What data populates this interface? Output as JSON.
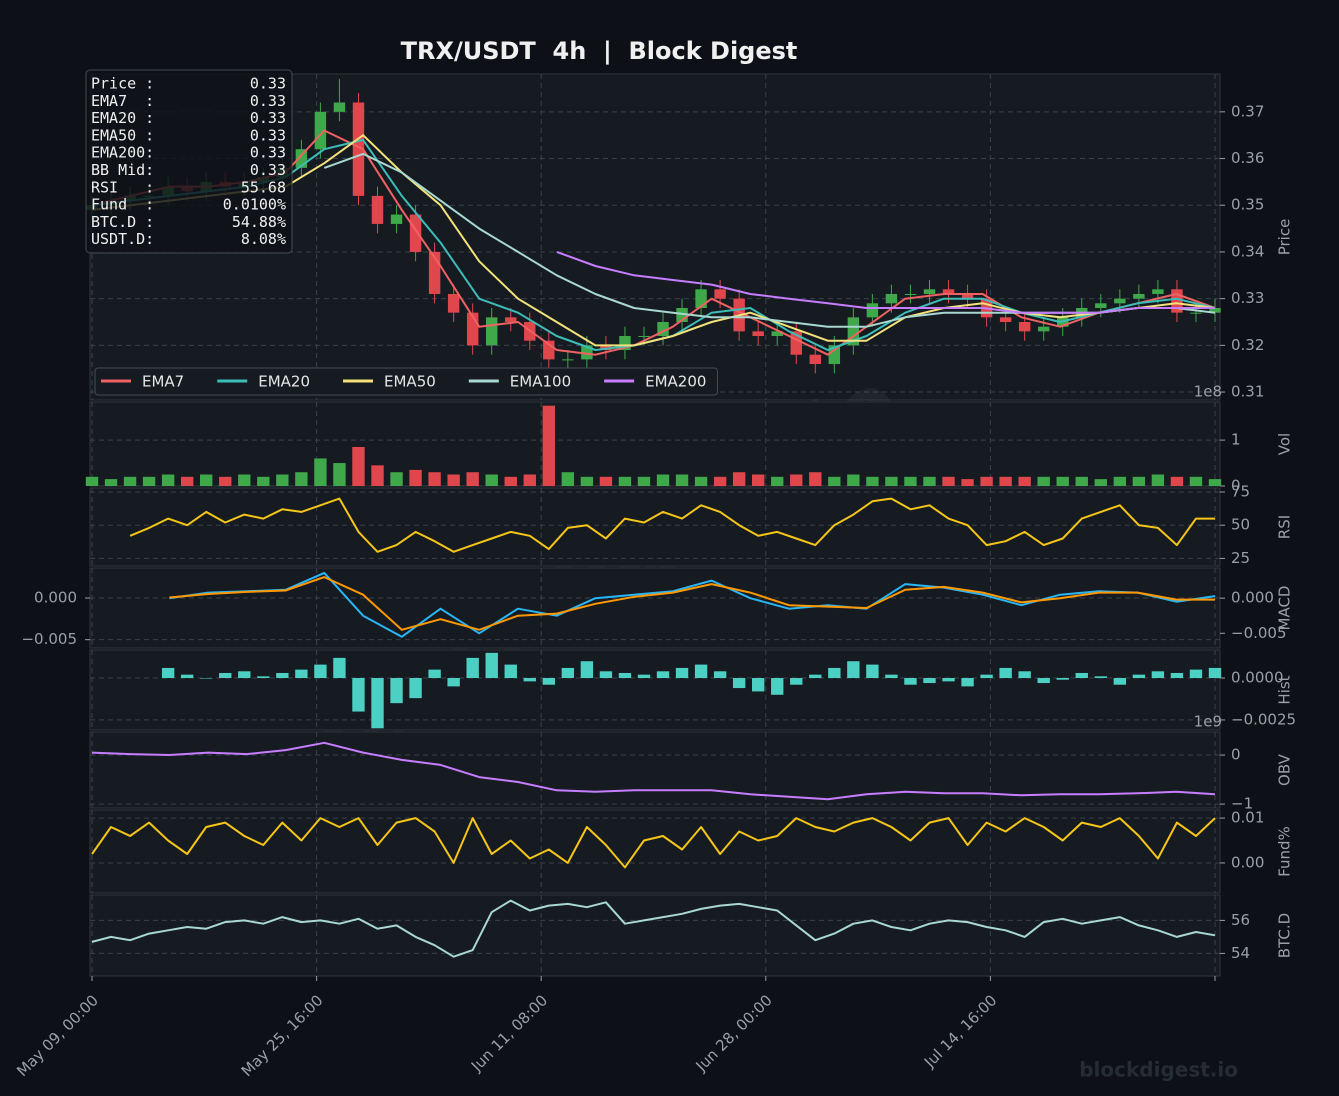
{
  "chart_data": [
    {
      "type": "candlestick",
      "title": "TRX/USDT  4h  |  Block Digest",
      "y_label": "Price",
      "ylim": [
        0.3083,
        0.3781
      ],
      "yticks": [
        0.31,
        0.32,
        0.33,
        0.34,
        0.35,
        0.36,
        0.37
      ],
      "grid": true,
      "up_color": "#3fa84a",
      "down_color": "#e0474c",
      "legend": "lower left",
      "open": [
        0.349,
        0.35,
        0.351,
        0.352,
        0.352,
        0.354,
        0.353,
        0.355,
        0.354,
        0.355,
        0.356,
        0.358,
        0.362,
        0.37,
        0.372,
        0.352,
        0.346,
        0.348,
        0.34,
        0.331,
        0.327,
        0.32,
        0.326,
        0.325,
        0.321,
        0.317,
        0.317,
        0.32,
        0.319,
        0.322,
        0.322,
        0.325,
        0.328,
        0.332,
        0.33,
        0.323,
        0.322,
        0.323,
        0.318,
        0.316,
        0.32,
        0.326,
        0.329,
        0.331,
        0.331,
        0.332,
        0.331,
        0.33,
        0.326,
        0.325,
        0.323,
        0.324,
        0.326,
        0.328,
        0.329,
        0.33,
        0.331,
        0.332,
        0.327,
        0.327
      ],
      "high": [
        0.352,
        0.353,
        0.354,
        0.354,
        0.356,
        0.356,
        0.357,
        0.357,
        0.357,
        0.358,
        0.36,
        0.364,
        0.372,
        0.377,
        0.374,
        0.354,
        0.35,
        0.35,
        0.342,
        0.333,
        0.329,
        0.328,
        0.328,
        0.327,
        0.323,
        0.319,
        0.322,
        0.322,
        0.324,
        0.324,
        0.327,
        0.33,
        0.334,
        0.334,
        0.332,
        0.325,
        0.325,
        0.325,
        0.32,
        0.322,
        0.328,
        0.331,
        0.333,
        0.333,
        0.334,
        0.334,
        0.333,
        0.332,
        0.328,
        0.327,
        0.326,
        0.328,
        0.33,
        0.331,
        0.332,
        0.333,
        0.334,
        0.334,
        0.329,
        0.33
      ],
      "low": [
        0.347,
        0.348,
        0.349,
        0.35,
        0.35,
        0.351,
        0.351,
        0.352,
        0.352,
        0.353,
        0.354,
        0.356,
        0.36,
        0.368,
        0.35,
        0.344,
        0.344,
        0.338,
        0.329,
        0.325,
        0.318,
        0.318,
        0.323,
        0.319,
        0.312,
        0.315,
        0.315,
        0.317,
        0.317,
        0.32,
        0.32,
        0.323,
        0.326,
        0.328,
        0.321,
        0.32,
        0.32,
        0.316,
        0.314,
        0.314,
        0.318,
        0.324,
        0.327,
        0.329,
        0.329,
        0.329,
        0.328,
        0.324,
        0.323,
        0.321,
        0.321,
        0.322,
        0.324,
        0.326,
        0.327,
        0.328,
        0.329,
        0.325,
        0.325,
        0.325
      ],
      "close": [
        0.35,
        0.351,
        0.352,
        0.352,
        0.354,
        0.353,
        0.355,
        0.354,
        0.355,
        0.356,
        0.358,
        0.362,
        0.37,
        0.372,
        0.352,
        0.346,
        0.348,
        0.34,
        0.331,
        0.327,
        0.32,
        0.326,
        0.325,
        0.321,
        0.317,
        0.317,
        0.32,
        0.319,
        0.322,
        0.322,
        0.325,
        0.328,
        0.332,
        0.33,
        0.323,
        0.322,
        0.323,
        0.318,
        0.316,
        0.32,
        0.326,
        0.329,
        0.331,
        0.331,
        0.332,
        0.331,
        0.33,
        0.326,
        0.325,
        0.323,
        0.324,
        0.326,
        0.328,
        0.329,
        0.33,
        0.331,
        0.332,
        0.327,
        0.327,
        0.328
      ],
      "series": [
        {
          "name": "EMA7",
          "color": "#f06262",
          "values": [
            0.35,
            0.352,
            0.354,
            0.354,
            0.355,
            0.357,
            0.366,
            0.362,
            0.349,
            0.337,
            0.324,
            0.325,
            0.319,
            0.318,
            0.32,
            0.324,
            0.33,
            0.326,
            0.322,
            0.318,
            0.324,
            0.33,
            0.331,
            0.331,
            0.326,
            0.324,
            0.327,
            0.329,
            0.331,
            0.328
          ]
        },
        {
          "name": "EMA20",
          "color": "#3cbdb8",
          "values": [
            0.35,
            0.351,
            0.352,
            0.353,
            0.354,
            0.356,
            0.362,
            0.364,
            0.352,
            0.342,
            0.33,
            0.327,
            0.322,
            0.319,
            0.32,
            0.322,
            0.327,
            0.328,
            0.323,
            0.319,
            0.322,
            0.327,
            0.33,
            0.33,
            0.327,
            0.325,
            0.327,
            0.329,
            0.33,
            0.328
          ]
        },
        {
          "name": "EMA50",
          "color": "#f3e27a",
          "values": [
            0.349,
            0.35,
            0.351,
            0.352,
            0.353,
            0.354,
            0.359,
            0.365,
            0.357,
            0.35,
            0.338,
            0.33,
            0.325,
            0.32,
            0.32,
            0.322,
            0.325,
            0.327,
            0.324,
            0.321,
            0.321,
            0.326,
            0.328,
            0.329,
            0.327,
            0.326,
            0.327,
            0.328,
            0.329,
            0.328
          ]
        },
        {
          "name": "EMA100",
          "color": "#a8d8d0",
          "values": [
            null,
            null,
            null,
            null,
            null,
            null,
            0.358,
            0.361,
            0.357,
            0.351,
            0.345,
            0.34,
            0.335,
            0.331,
            0.328,
            0.327,
            0.326,
            0.326,
            0.325,
            0.324,
            0.324,
            0.326,
            0.327,
            0.327,
            0.327,
            0.327,
            0.327,
            0.328,
            0.328,
            0.327
          ]
        },
        {
          "name": "EMA200",
          "color": "#c77dff",
          "values": [
            null,
            null,
            null,
            null,
            null,
            null,
            null,
            null,
            null,
            null,
            null,
            null,
            0.34,
            0.337,
            0.335,
            0.334,
            0.333,
            0.331,
            0.33,
            0.329,
            0.328,
            0.328,
            0.328,
            0.328,
            0.327,
            0.327,
            0.327,
            0.328,
            0.328,
            0.328
          ]
        }
      ],
      "info_box": [
        {
          "label": "Price :",
          "value": "0.33"
        },
        {
          "label": "EMA7  :",
          "value": "0.33"
        },
        {
          "label": "EMA20 :",
          "value": "0.33"
        },
        {
          "label": "EMA50 :",
          "value": "0.33"
        },
        {
          "label": "EMA200:",
          "value": "0.33"
        },
        {
          "label": "BB Mid:",
          "value": "0.33"
        },
        {
          "label": "RSI   :",
          "value": "55.68"
        },
        {
          "label": "Fund  :",
          "value": "0.0100%"
        },
        {
          "label": "BTC.D :",
          "value": "54.88%"
        },
        {
          "label": "USDT.D:",
          "value": "8.08%"
        }
      ],
      "watermark": "blockdigest.io"
    },
    {
      "type": "bar",
      "y_label": "Vol",
      "offset_label": "1e8",
      "ylim": [
        0,
        1.83
      ],
      "yticks": [
        0,
        1
      ],
      "grid": true,
      "values": [
        0.2,
        0.15,
        0.2,
        0.2,
        0.25,
        0.2,
        0.25,
        0.2,
        0.25,
        0.2,
        0.25,
        0.3,
        0.6,
        0.5,
        0.85,
        0.45,
        0.3,
        0.35,
        0.3,
        0.25,
        0.3,
        0.25,
        0.2,
        0.25,
        1.75,
        0.3,
        0.2,
        0.2,
        0.2,
        0.2,
        0.25,
        0.25,
        0.2,
        0.2,
        0.3,
        0.25,
        0.2,
        0.25,
        0.3,
        0.2,
        0.25,
        0.2,
        0.2,
        0.2,
        0.2,
        0.2,
        0.15,
        0.2,
        0.2,
        0.2,
        0.2,
        0.2,
        0.2,
        0.15,
        0.2,
        0.2,
        0.25,
        0.2,
        0.2,
        0.15
      ]
    },
    {
      "type": "line",
      "y_label": "RSI",
      "ylim": [
        19.3,
        78
      ],
      "yticks": [
        25,
        50,
        75
      ],
      "grid": true,
      "series": [
        {
          "color": "#f5c518",
          "values": [
            null,
            null,
            42,
            48,
            55,
            50,
            60,
            52,
            58,
            55,
            62,
            60,
            65,
            70,
            45,
            30,
            35,
            45,
            38,
            30,
            35,
            40,
            45,
            42,
            32,
            48,
            50,
            40,
            55,
            52,
            60,
            55,
            65,
            60,
            50,
            42,
            45,
            40,
            35,
            50,
            58,
            68,
            70,
            62,
            65,
            55,
            50,
            35,
            38,
            45,
            35,
            40,
            55,
            60,
            65,
            50,
            48,
            35,
            55,
            55
          ]
        }
      ]
    },
    {
      "type": "line",
      "y_label": "MACD",
      "ylim": [
        -0.006,
        0.0036
      ],
      "yticks": [
        {
          "value": 0,
          "label": "0.000"
        },
        {
          "value": -0.005,
          "label": "−0.005"
        }
      ],
      "y2lim": [
        -0.0071,
        0.0043
      ],
      "y2ticks": [
        {
          "value": 0,
          "label": "0.000"
        },
        {
          "value": -0.005,
          "label": "−0.005"
        }
      ],
      "grid": true,
      "series": [
        {
          "color": "#29b6f6",
          "axis": "y2",
          "values": [
            null,
            null,
            0,
            0.0008,
            0.001,
            0.0012,
            0.0036,
            -0.0025,
            -0.0055,
            -0.0015,
            -0.005,
            -0.0015,
            -0.0025,
            0,
            0.0005,
            0.001,
            0.0025,
            0,
            -0.0015,
            -0.001,
            -0.0015,
            0.002,
            0.0015,
            0.0005,
            -0.001,
            0.0005,
            0.001,
            0.0008,
            -0.0005,
            0.0003
          ]
        },
        {
          "color": "#ff9800",
          "axis": "y2",
          "values": [
            null,
            null,
            0.0001,
            0.0006,
            0.0009,
            0.0011,
            0.003,
            0.0005,
            -0.0045,
            -0.003,
            -0.0045,
            -0.0025,
            -0.0022,
            -0.0008,
            0.0002,
            0.0008,
            0.002,
            0.0008,
            -0.001,
            -0.0012,
            -0.0014,
            0.0012,
            0.0016,
            0.0008,
            -0.0006,
            0,
            0.0008,
            0.0008,
            -0.0002,
            -0.0002
          ]
        }
      ]
    },
    {
      "type": "bar",
      "y_label": "Hist",
      "color": "#4dd0c4",
      "ylim": [
        -0.0031,
        0.00167
      ],
      "yticks": [
        {
          "value": 0,
          "label": "0.0000"
        },
        {
          "value": -0.0025,
          "label": "−0.0025"
        }
      ],
      "grid": true,
      "values": [
        null,
        null,
        null,
        null,
        0.0006,
        0.0002,
        0,
        0.0003,
        0.0004,
        0.0001,
        0.0003,
        0.0005,
        0.0008,
        0.0012,
        -0.002,
        -0.003,
        -0.0015,
        -0.0012,
        0.0005,
        -0.0005,
        0.0012,
        0.0015,
        0.0008,
        -0.0002,
        -0.0004,
        0.0006,
        0.001,
        0.0004,
        0.0003,
        0.0002,
        0.0004,
        0.0006,
        0.0008,
        0.0004,
        -0.0006,
        -0.0008,
        -0.001,
        -0.0004,
        0.0002,
        0.0006,
        0.001,
        0.0008,
        0.0002,
        -0.0004,
        -0.0003,
        -0.0002,
        -0.0005,
        0.0002,
        0.0006,
        0.0004,
        -0.0003,
        -0.0001,
        0.0003,
        0.0001,
        -0.0004,
        0.0002,
        0.0004,
        0.0003,
        0.0005,
        0.0006
      ]
    },
    {
      "type": "line",
      "y_label": "OBV",
      "offset_label": "1e9",
      "ylim": [
        -1.08,
        0.47
      ],
      "yticks": [
        0,
        {
          "value": -1,
          "label": "−1"
        }
      ],
      "grid": true,
      "series": [
        {
          "color": "#c77dff",
          "values": [
            0.05,
            0.02,
            0,
            0.05,
            0.02,
            0.1,
            0.25,
            0.05,
            -0.1,
            -0.2,
            -0.45,
            -0.55,
            -0.72,
            -0.75,
            -0.72,
            -0.72,
            -0.72,
            -0.8,
            -0.85,
            -0.9,
            -0.8,
            -0.75,
            -0.78,
            -0.78,
            -0.82,
            -0.8,
            -0.8,
            -0.78,
            -0.75,
            -0.8
          ]
        }
      ]
    },
    {
      "type": "line",
      "y_label": "Fund%",
      "ylim": [
        -0.0067,
        0.0118
      ],
      "yticks": [
        0.01,
        {
          "value": 0,
          "label": "0.00"
        }
      ],
      "grid": true,
      "series": [
        {
          "color": "#f5c518",
          "values": [
            0.002,
            0.008,
            0.006,
            0.009,
            0.005,
            0.002,
            0.008,
            0.009,
            0.006,
            0.004,
            0.009,
            0.005,
            0.01,
            0.008,
            0.01,
            0.004,
            0.009,
            0.01,
            0.007,
            0,
            0.01,
            0.002,
            0.005,
            0.001,
            0.003,
            0,
            0.008,
            0.004,
            -0.001,
            0.005,
            0.006,
            0.003,
            0.008,
            0.002,
            0.007,
            0.005,
            0.006,
            0.01,
            0.008,
            0.007,
            0.009,
            0.01,
            0.008,
            0.005,
            0.009,
            0.01,
            0.004,
            0.009,
            0.007,
            0.01,
            0.008,
            0.005,
            0.009,
            0.008,
            0.01,
            0.006,
            0.001,
            0.009,
            0.006,
            0.01
          ]
        }
      ]
    },
    {
      "type": "line",
      "y_label": "BTC.D",
      "ylim": [
        52.63,
        57.54
      ],
      "yticks": [
        54,
        56
      ],
      "grid": true,
      "xticks": [
        "May 09, 00:00",
        "May 25, 16:00",
        "Jun 11, 08:00",
        "Jun 28, 00:00",
        "Jul 14, 16:00",
        null
      ],
      "series": [
        {
          "color": "#a8d8d0",
          "values": [
            54.7,
            55.0,
            54.8,
            55.2,
            55.4,
            55.6,
            55.5,
            55.9,
            56.0,
            55.8,
            56.2,
            55.9,
            56.0,
            55.8,
            56.1,
            55.5,
            55.7,
            55.0,
            54.5,
            53.8,
            54.2,
            56.5,
            57.2,
            56.6,
            56.9,
            57.0,
            56.8,
            57.1,
            55.8,
            56.0,
            56.2,
            56.4,
            56.7,
            56.9,
            57.0,
            56.8,
            56.6,
            55.7,
            54.8,
            55.2,
            55.8,
            56.0,
            55.6,
            55.4,
            55.8,
            56.0,
            55.9,
            55.6,
            55.4,
            55.0,
            55.9,
            56.1,
            55.8,
            56.0,
            56.2,
            55.7,
            55.4,
            55.0,
            55.3,
            55.1
          ]
        }
      ]
    }
  ]
}
